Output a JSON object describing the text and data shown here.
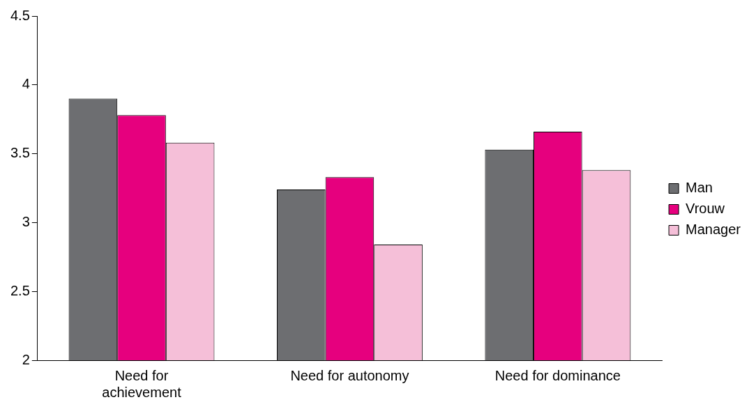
{
  "chart_data": {
    "type": "bar",
    "categories": [
      "Need for achievement",
      "Need for autonomy",
      "Need for dominance"
    ],
    "series": [
      {
        "name": "Man",
        "color": "#6d6e71",
        "values": [
          3.9,
          3.24,
          3.53
        ]
      },
      {
        "name": "Vrouw",
        "color": "#e6007e",
        "values": [
          3.78,
          3.33,
          3.66
        ]
      },
      {
        "name": "Manager",
        "color": "#f5bfd8",
        "values": [
          3.58,
          2.84,
          3.38
        ]
      }
    ],
    "ylim": [
      2,
      4.5
    ],
    "yticks": [
      2,
      2.5,
      3,
      3.5,
      4,
      4.5
    ],
    "grid": false,
    "legend": "right"
  }
}
